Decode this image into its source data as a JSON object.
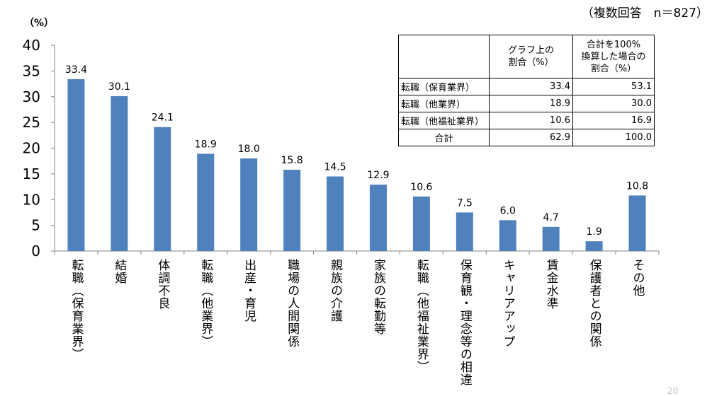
{
  "page_number": "20",
  "chart_data": {
    "type": "bar",
    "title": "",
    "xlabel": "",
    "ylabel": "（%）",
    "annotation": "（複数回答　n＝827）",
    "ylim": [
      0,
      40
    ],
    "yticks": [
      0,
      5,
      10,
      15,
      20,
      25,
      30,
      35,
      40
    ],
    "grid": false,
    "legend": "none",
    "bar_color": "#4F81BD",
    "axis_color": "#868686",
    "categories": [
      "転職（保育業界）",
      "結婚",
      "体調不良",
      "転職（他業界）",
      "出産・育児",
      "職場の人間関係",
      "親族の介護",
      "家族の転勤等",
      "転職（他福祉業界）",
      "保育観・理念等の相違",
      "キャリアアップ",
      "賃金水準",
      "保護者との関係",
      "その他"
    ],
    "values": [
      33.4,
      30.1,
      24.1,
      18.9,
      18.0,
      15.8,
      14.5,
      12.9,
      10.6,
      7.5,
      6.0,
      4.7,
      1.9,
      10.8
    ],
    "data_labels": [
      "33.4",
      "30.1",
      "24.1",
      "18.9",
      "18.0",
      "15.8",
      "14.5",
      "12.9",
      "10.6",
      "7.5",
      "6.0",
      "4.7",
      "1.9",
      "10.8"
    ]
  },
  "summary_table": {
    "headers": [
      [],
      [
        "グラフ上の",
        "割合（%）"
      ],
      [
        "合計を100%",
        "換算した場合の",
        "割合（%）"
      ]
    ],
    "rows": [
      {
        "label": "転職（保育業界）",
        "graph_pct": "33.4",
        "normalized_pct": "53.1"
      },
      {
        "label": "転職（他業界）",
        "graph_pct": "18.9",
        "normalized_pct": "30.0"
      },
      {
        "label": "転職（他福祉業界）",
        "graph_pct": "10.6",
        "normalized_pct": "16.9"
      },
      {
        "label": "合計",
        "graph_pct": "62.9",
        "normalized_pct": "100.0"
      }
    ]
  }
}
